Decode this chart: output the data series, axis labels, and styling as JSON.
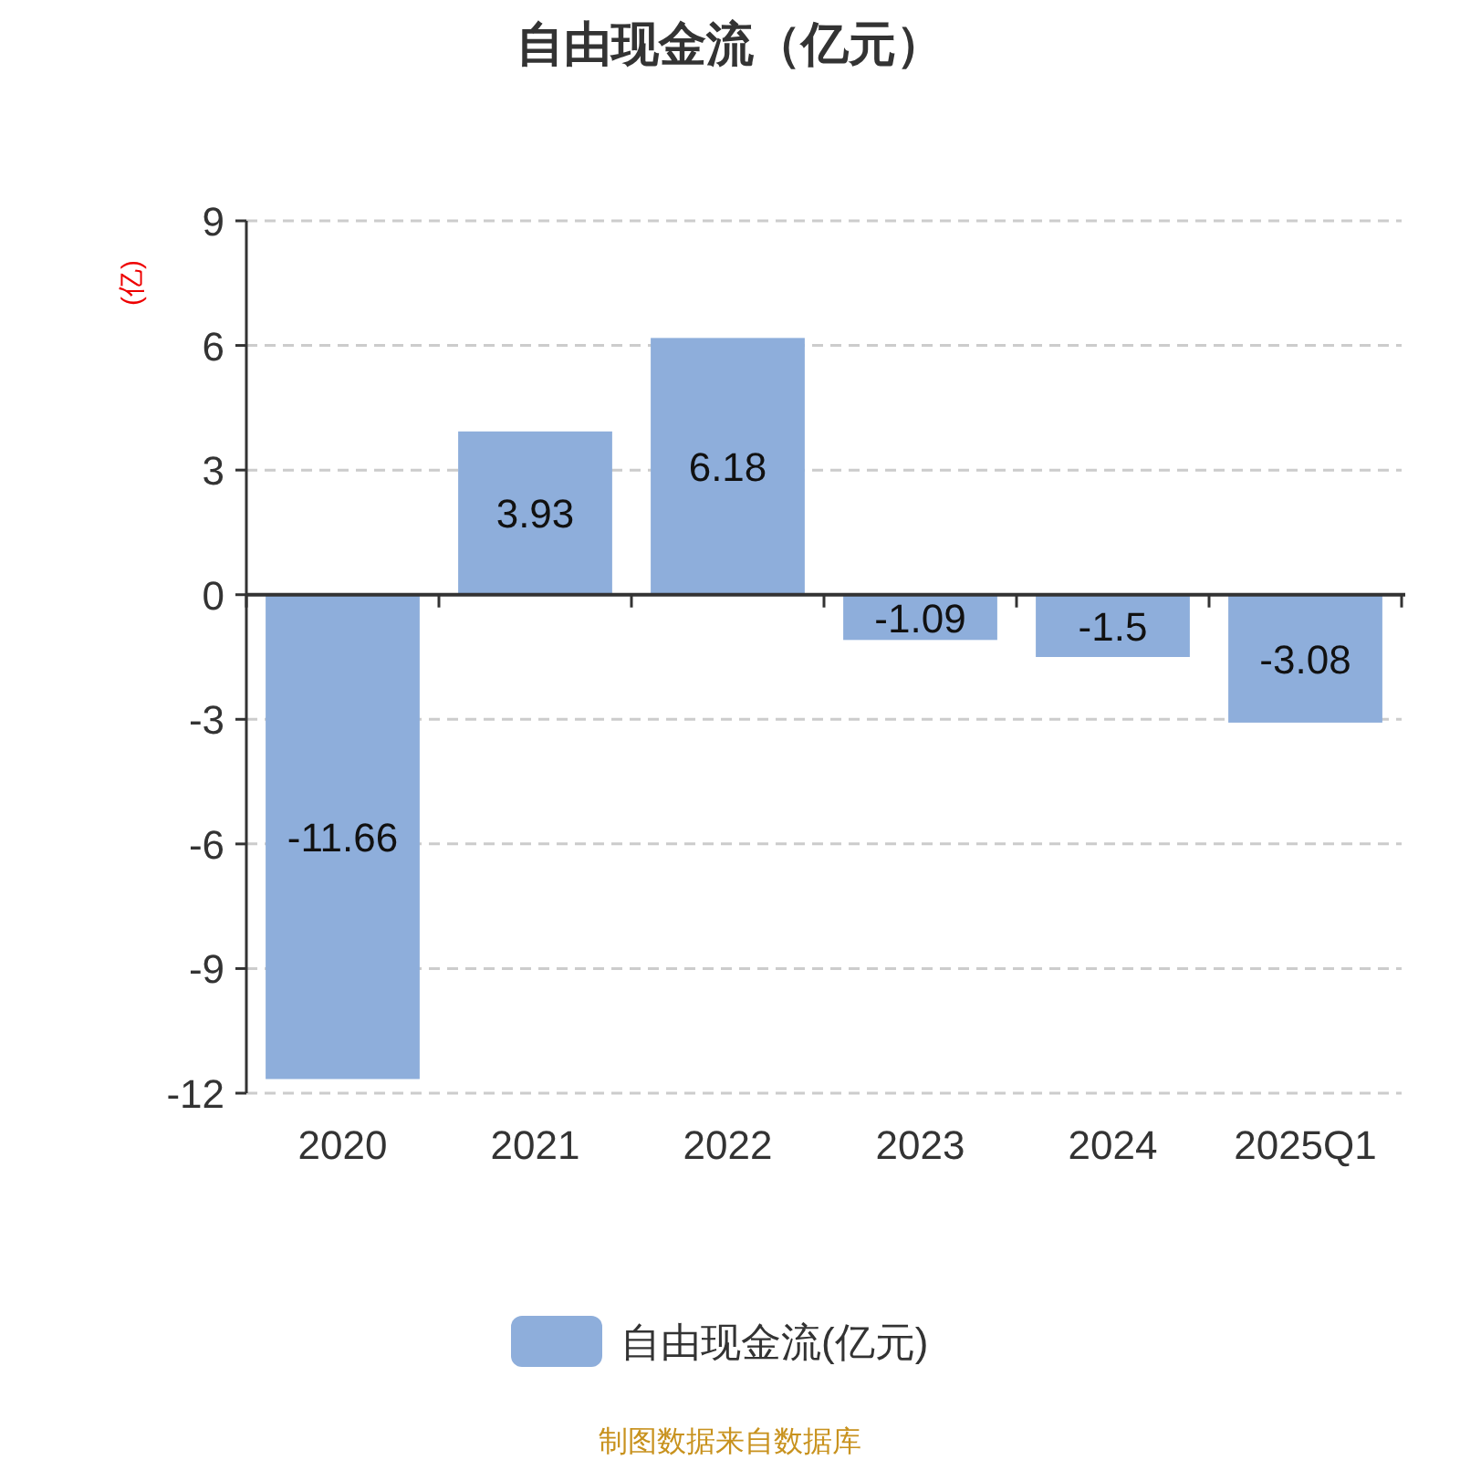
{
  "chart_data": {
    "type": "bar",
    "title": "自由现金流（亿元）",
    "ylabel": "(亿)",
    "categories": [
      "2020",
      "2021",
      "2022",
      "2023",
      "2024",
      "2025Q1"
    ],
    "series": [
      {
        "name": "自由现金流(亿元)",
        "color": "#8eaedb",
        "values": [
          -11.66,
          3.93,
          6.18,
          -1.09,
          -1.5,
          -3.08
        ]
      }
    ],
    "ylim": [
      -12,
      9
    ],
    "yticks": [
      -12,
      -9,
      -6,
      -3,
      0,
      3,
      6,
      9
    ],
    "grid": "y",
    "legend": "bottom",
    "data_labels": true,
    "annotations": [
      "制图数据来自数据库"
    ]
  }
}
